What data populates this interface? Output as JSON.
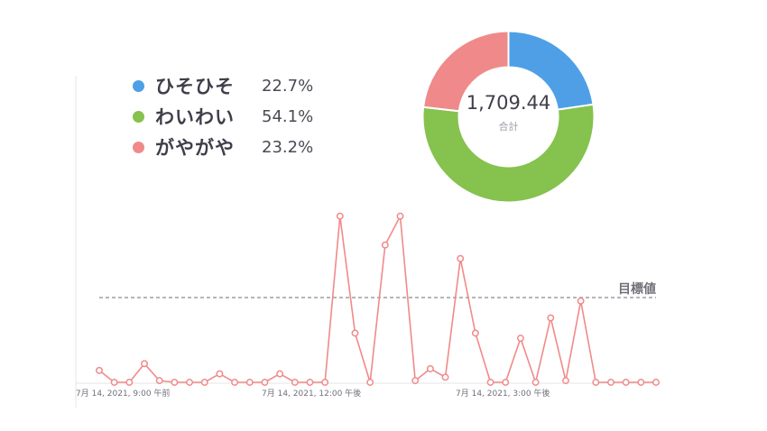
{
  "chart_data": [
    {
      "type": "pie",
      "variant": "donut",
      "total": "1,709.44",
      "total_label": "合計",
      "slices": [
        {
          "name": "ひそひそ",
          "percent": 22.7,
          "percent_label": "22.7%",
          "color": "#4f9fe6"
        },
        {
          "name": "わいわい",
          "percent": 54.1,
          "percent_label": "54.1%",
          "color": "#85c24e"
        },
        {
          "name": "がやがや",
          "percent": 23.2,
          "percent_label": "23.2%",
          "color": "#f08a8a"
        }
      ],
      "legend": "top-left"
    },
    {
      "type": "line",
      "color": "#f08a8a",
      "target_label": "目標値",
      "target_value": 0.5,
      "ylim": [
        0,
        1
      ],
      "grid": false,
      "x_tick_labels": [
        "7月 14, 2021, 9:00 午前",
        "7月 14, 2021, 12:00 午後",
        "7月 14, 2021, 3:00 午後"
      ],
      "x_tick_index": [
        0,
        12,
        24
      ],
      "values": [
        0.07,
        0.0,
        0.0,
        0.11,
        0.01,
        0.0,
        0.0,
        0.0,
        0.05,
        0.0,
        0.0,
        0.0,
        0.05,
        0.0,
        0.0,
        0.0,
        0.98,
        0.29,
        0.0,
        0.81,
        0.98,
        0.01,
        0.08,
        0.03,
        0.73,
        0.29,
        0.0,
        0.0,
        0.26,
        0.0,
        0.38,
        0.01,
        0.48,
        0.0,
        0.0,
        0.0,
        0.0,
        0.0
      ]
    }
  ]
}
